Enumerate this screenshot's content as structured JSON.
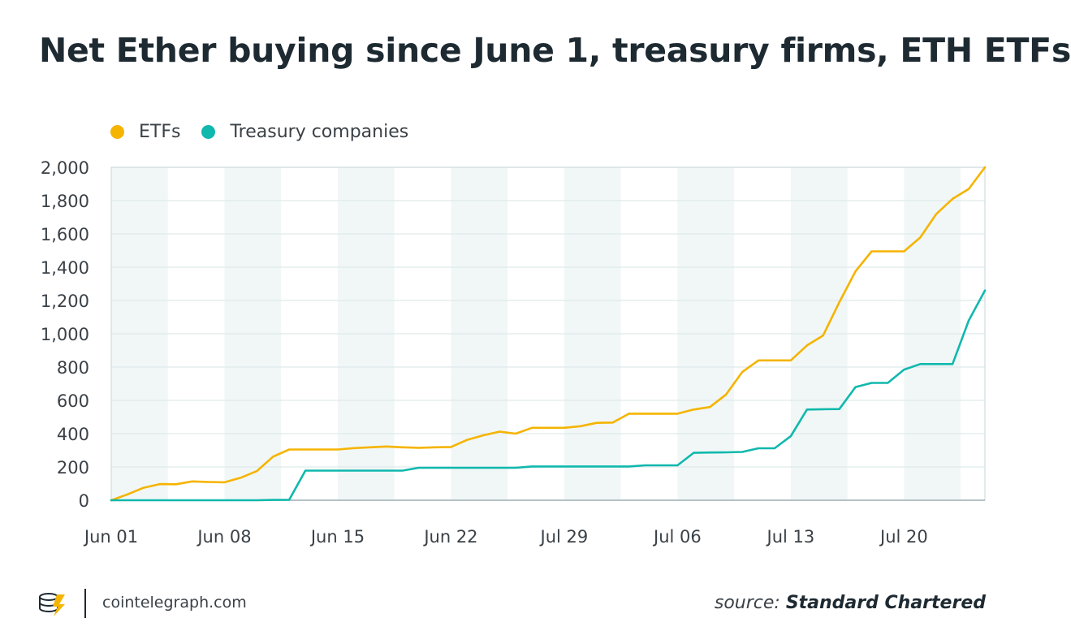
{
  "title": "Net Ether buying since June 1, treasury firms, ETH ETFs",
  "footer": {
    "site": "cointelegraph.com",
    "source_prefix": "source:",
    "source_name": "Standard Chartered"
  },
  "colors": {
    "etf": "#f5b400",
    "treasury": "#10b8ad",
    "band": "#f1f7f7",
    "grid": "#dfe9ea",
    "text": "#3a4147",
    "title": "#1e2a32"
  },
  "chart_data": {
    "type": "line",
    "title": "Net Ether buying since June 1, treasury firms, ETH ETFs",
    "xlabel": "",
    "ylabel": "",
    "ylim": [
      0,
      2000
    ],
    "yticks": [
      "0",
      "200",
      "400",
      "600",
      "800",
      "1,000",
      "1,200",
      "1,400",
      "1,600",
      "1,800",
      "2,000"
    ],
    "ytick_values": [
      0,
      200,
      400,
      600,
      800,
      1000,
      1200,
      1400,
      1600,
      1800,
      2000
    ],
    "xlim": [
      0,
      54
    ],
    "x_tick_labels": [
      "Jun 01",
      "Jun 08",
      "Jun 15",
      "Jun 22",
      "Jul 29",
      "Jul 06",
      "Jul 13",
      "Jul 20"
    ],
    "x_tick_positions": [
      0,
      7,
      14,
      21,
      28,
      35,
      42,
      49
    ],
    "weekend_bands": [
      [
        0,
        3.5
      ],
      [
        7,
        10.5
      ],
      [
        14,
        17.5
      ],
      [
        21,
        24.5
      ],
      [
        28,
        31.5
      ],
      [
        35,
        38.5
      ],
      [
        42,
        45.5
      ],
      [
        49,
        52.5
      ]
    ],
    "grid": true,
    "legend_position": "top-left",
    "series": [
      {
        "name": "ETFs",
        "color": "#f5b400",
        "x": [
          0,
          1,
          2,
          3,
          4,
          5,
          6,
          7,
          8,
          9,
          10,
          11,
          12,
          13,
          14,
          15,
          16,
          17,
          18,
          19,
          20,
          21,
          22,
          23,
          24,
          25,
          26,
          27,
          28,
          29,
          30,
          31,
          32,
          33,
          34,
          35,
          36,
          37,
          38,
          39,
          40,
          41,
          42,
          43,
          44,
          45,
          46,
          47,
          48,
          49,
          50,
          51,
          52,
          53,
          54
        ],
        "values": [
          0,
          35,
          75,
          97,
          96,
          113,
          110,
          108,
          135,
          175,
          262,
          305,
          305,
          305,
          305,
          313,
          318,
          323,
          318,
          315,
          318,
          320,
          363,
          390,
          412,
          400,
          435,
          435,
          435,
          445,
          465,
          467,
          520,
          520,
          520,
          520,
          545,
          560,
          635,
          770,
          840,
          840,
          840,
          930,
          990,
          1190,
          1375,
          1495,
          1495,
          1495,
          1578,
          1720,
          1810,
          1870,
          2000
        ]
      },
      {
        "name": "Treasury companies",
        "color": "#10b8ad",
        "x": [
          0,
          1,
          2,
          3,
          4,
          5,
          6,
          7,
          8,
          9,
          10,
          11,
          12,
          13,
          14,
          15,
          16,
          17,
          18,
          19,
          20,
          21,
          22,
          23,
          24,
          25,
          26,
          27,
          28,
          29,
          30,
          31,
          32,
          33,
          34,
          35,
          36,
          37,
          38,
          39,
          40,
          41,
          42,
          43,
          44,
          45,
          46,
          47,
          48,
          49,
          50,
          51,
          52,
          53,
          54
        ],
        "values": [
          0,
          0,
          0,
          0,
          0,
          0,
          0,
          0,
          0,
          0,
          2,
          3,
          178,
          178,
          178,
          178,
          178,
          178,
          178,
          195,
          195,
          195,
          195,
          195,
          195,
          195,
          203,
          203,
          203,
          203,
          203,
          203,
          203,
          210,
          210,
          210,
          285,
          287,
          288,
          290,
          312,
          312,
          385,
          545,
          547,
          548,
          680,
          705,
          705,
          785,
          818,
          818,
          818,
          1080,
          1260
        ]
      }
    ]
  }
}
